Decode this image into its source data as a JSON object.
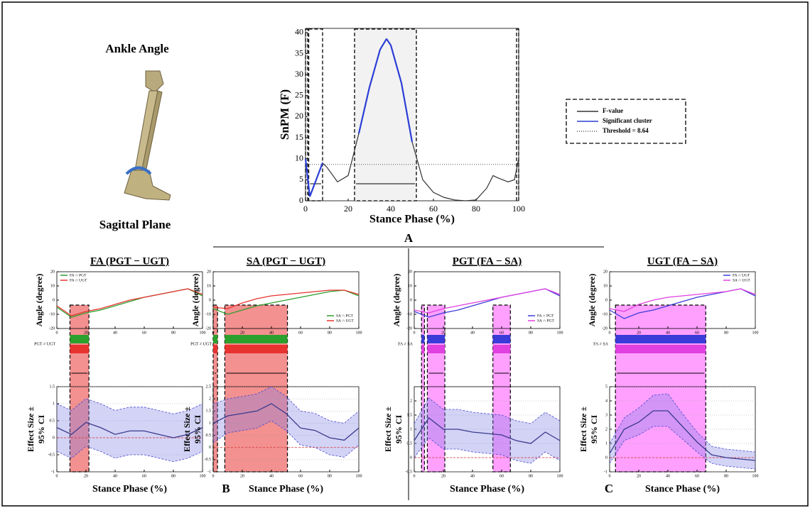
{
  "figure": {
    "left_title": "Ankle Angle",
    "left_subtitle": "Sagittal Plane",
    "panel_labels": [
      "A",
      "B",
      "C"
    ]
  },
  "chart_data": [
    {
      "type": "line",
      "ylabel": "SnPM (F)",
      "xlabel": "Stance Phase (%)",
      "xlim": [
        0,
        100
      ],
      "ylim": [
        0,
        41
      ],
      "xticks": [
        0,
        20,
        40,
        60,
        80,
        100
      ],
      "yticks": [
        0,
        5,
        10,
        15,
        20,
        25,
        30,
        35,
        40
      ],
      "x": [
        0,
        2,
        5,
        8,
        10,
        15,
        20,
        25,
        30,
        35,
        38,
        40,
        45,
        50,
        55,
        60,
        65,
        70,
        75,
        80,
        85,
        88,
        90,
        95,
        98,
        100
      ],
      "series": [
        {
          "name": "F-value",
          "color": "#333333",
          "values": [
            10,
            1,
            5,
            9,
            8,
            4.5,
            6,
            16,
            27,
            36,
            38.5,
            37,
            28,
            14,
            5,
            2,
            0.8,
            0.2,
            0,
            0.2,
            3,
            6,
            5.5,
            4.5,
            5,
            10
          ]
        }
      ],
      "threshold": 8.64,
      "threshold_label": "Threshold = 8.64",
      "cluster_label": "Significant cluster",
      "cluster_color": "#2b3ed6",
      "clusters": [
        [
          0,
          1
        ],
        [
          1.5,
          8
        ],
        [
          23,
          52
        ],
        [
          99,
          100
        ]
      ]
    },
    {
      "type": "line",
      "title": "FA (PGT − UGT)",
      "ylabel": "Angle (degree)",
      "xlim": [
        0,
        100
      ],
      "ylim": [
        -20,
        20
      ],
      "xticks": [
        0,
        20,
        40,
        60,
        80,
        100
      ],
      "yticks": [
        -20,
        -10,
        0,
        10,
        20
      ],
      "legend": "upper left",
      "x": [
        0,
        10,
        20,
        30,
        40,
        50,
        60,
        70,
        80,
        90,
        100
      ],
      "series": [
        {
          "name": "FA ∩ PGT",
          "color": "#2ca02c",
          "values": [
            -5,
            -12,
            -9,
            -7,
            -4,
            -1,
            2,
            4,
            6,
            8,
            3
          ]
        },
        {
          "name": "FA ∩ UGT",
          "color": "#e8322f",
          "values": [
            -4,
            -11,
            -8,
            -6,
            -3,
            0,
            2,
            4,
            6,
            8,
            4
          ]
        }
      ],
      "significance_label": "PGT ≠ UGT",
      "clusters": [
        [
          9,
          22
        ]
      ],
      "cluster_color": "#ef6b6b"
    },
    {
      "type": "band",
      "xlabel": "Stance Phase (%)",
      "ylabel": [
        "Effect Size ±",
        "95% CI"
      ],
      "xlim": [
        0,
        100
      ],
      "ylim": [
        -1,
        1.5
      ],
      "xticks": [
        0,
        20,
        40,
        60,
        80,
        100
      ],
      "yticks": [
        -1,
        -0.5,
        0,
        0.5,
        1,
        1.5
      ],
      "color": "#3a3a8c",
      "x": [
        0,
        10,
        20,
        30,
        40,
        50,
        60,
        70,
        80,
        90,
        100
      ],
      "values": [
        0.3,
        0.1,
        0.45,
        0.3,
        0.1,
        0.2,
        0.2,
        0.1,
        0,
        0.1,
        0.3
      ],
      "lower": [
        -0.4,
        -0.6,
        -0.25,
        -0.4,
        -0.6,
        -0.5,
        -0.5,
        -0.6,
        -0.7,
        -0.6,
        -0.4
      ],
      "upper": [
        1,
        0.8,
        1.15,
        1,
        0.8,
        0.9,
        0.9,
        0.8,
        0.7,
        0.8,
        1
      ]
    },
    {
      "type": "line",
      "title": "SA (PGT − UGT)",
      "ylabel": "Angle (degree)",
      "xlim": [
        0,
        100
      ],
      "ylim": [
        -20,
        20
      ],
      "xticks": [
        0,
        20,
        40,
        60,
        80,
        100
      ],
      "yticks": [
        -20,
        -10,
        0,
        10,
        20
      ],
      "legend": "lower right",
      "x": [
        0,
        10,
        20,
        30,
        40,
        50,
        60,
        70,
        80,
        90,
        100
      ],
      "series": [
        {
          "name": "SA ∩ PGT",
          "color": "#2ca02c",
          "values": [
            -6,
            -10,
            -7,
            -4,
            -2,
            0,
            2,
            4,
            6,
            7,
            3
          ]
        },
        {
          "name": "SA ∩ UGT",
          "color": "#e8322f",
          "values": [
            -5,
            -6,
            -2,
            1,
            3,
            4,
            5,
            6,
            7,
            7,
            4
          ]
        }
      ],
      "significance_label": "PGT ≠ UGT",
      "clusters": [
        [
          0,
          3
        ],
        [
          8,
          51
        ]
      ],
      "cluster_color": "#ef6b6b"
    },
    {
      "type": "band",
      "xlabel": "Stance Phase (%)",
      "ylabel": [
        "Effect Size ±",
        "95% CI"
      ],
      "xlim": [
        0,
        100
      ],
      "ylim": [
        -1,
        2.5
      ],
      "xticks": [
        0,
        20,
        40,
        60,
        80,
        100
      ],
      "yticks": [
        -1,
        -0.5,
        0,
        0.5,
        1,
        1.5,
        2,
        2.5
      ],
      "color": "#3a3a8c",
      "x": [
        0,
        10,
        20,
        30,
        40,
        50,
        60,
        70,
        80,
        90,
        100
      ],
      "values": [
        1,
        1.3,
        1.4,
        1.5,
        1.8,
        1.4,
        0.8,
        0.7,
        0.4,
        0.3,
        0.8
      ],
      "lower": [
        0.2,
        0.6,
        0.7,
        0.8,
        1.1,
        0.7,
        0.1,
        0,
        -0.3,
        -0.4,
        0.1
      ],
      "upper": [
        1.8,
        2,
        2.1,
        2.2,
        2.5,
        2.1,
        1.5,
        1.4,
        1.1,
        1,
        1.5
      ]
    },
    {
      "type": "line",
      "title": "PGT (FA − SA)",
      "ylabel": "Angle (degree)",
      "xlim": [
        0,
        100
      ],
      "ylim": [
        -20,
        20
      ],
      "xticks": [
        0,
        20,
        40,
        60,
        80,
        100
      ],
      "yticks": [
        -20,
        -10,
        0,
        10,
        20
      ],
      "legend": "lower right",
      "x": [
        0,
        10,
        20,
        30,
        40,
        50,
        60,
        70,
        80,
        90,
        100
      ],
      "series": [
        {
          "name": "FA ∩ PGT",
          "color": "#3b3bd9",
          "values": [
            -8,
            -12,
            -9,
            -7,
            -4,
            -1,
            2,
            4,
            6,
            8,
            3
          ]
        },
        {
          "name": "SA ∩ PGT",
          "color": "#e040e0",
          "values": [
            -7,
            -9,
            -6,
            -4,
            -2,
            0,
            2,
            4,
            6,
            8,
            4
          ]
        }
      ],
      "significance_label": "FA ≠ SA",
      "clusters": [
        [
          5,
          7
        ],
        [
          9,
          21
        ],
        [
          54,
          66
        ]
      ],
      "cluster_color": "#ff80ff"
    },
    {
      "type": "band",
      "xlabel": "Stance Phase (%)",
      "ylabel": [
        "Effect Size ±",
        "95% CI"
      ],
      "xlim": [
        0,
        100
      ],
      "ylim": [
        -0.5,
        2.5
      ],
      "xticks": [
        0,
        20,
        40,
        60,
        80,
        100
      ],
      "yticks": [
        -0.5,
        0,
        0.5,
        1,
        1.5,
        2
      ],
      "color": "#3a3a8c",
      "x": [
        0,
        10,
        20,
        30,
        40,
        50,
        60,
        70,
        80,
        90,
        100
      ],
      "values": [
        0.6,
        1.4,
        1,
        1,
        0.9,
        0.85,
        0.8,
        0.6,
        0.5,
        0.9,
        0.6
      ],
      "lower": [
        0,
        0.7,
        0.3,
        0.3,
        0.2,
        0.15,
        0.1,
        -0.1,
        -0.2,
        0.2,
        -0.1
      ],
      "upper": [
        1.2,
        2.1,
        1.7,
        1.7,
        1.6,
        1.55,
        1.5,
        1.3,
        1.2,
        1.6,
        1.3
      ]
    },
    {
      "type": "line",
      "title": "UGT (FA − SA)",
      "ylabel": "Angle (degree)",
      "xlim": [
        0,
        100
      ],
      "ylim": [
        -20,
        20
      ],
      "xticks": [
        0,
        20,
        40,
        60,
        80,
        100
      ],
      "yticks": [
        -20,
        -10,
        0,
        10,
        20
      ],
      "legend": "upper right",
      "x": [
        0,
        10,
        20,
        30,
        40,
        50,
        60,
        70,
        80,
        90,
        100
      ],
      "series": [
        {
          "name": "FA ∩ UGT",
          "color": "#3b3bd9",
          "values": [
            -7,
            -13,
            -9,
            -7,
            -4,
            -1,
            2,
            4,
            6,
            8,
            3
          ]
        },
        {
          "name": "SA ∩ UGT",
          "color": "#e040e0",
          "values": [
            -6,
            -8,
            -3,
            0,
            2,
            3,
            4,
            5,
            6,
            8,
            4
          ]
        }
      ],
      "significance_label": "FA ≠ SA",
      "clusters": [
        [
          4,
          66
        ]
      ],
      "cluster_color": "#ff80ff"
    },
    {
      "type": "band",
      "xlabel": "Stance Phase (%)",
      "ylabel": [
        "Effect Size ±",
        "95% CI"
      ],
      "xlim": [
        0,
        100
      ],
      "ylim": [
        -1,
        5
      ],
      "xticks": [
        0,
        20,
        40,
        60,
        80,
        100
      ],
      "yticks": [
        -1,
        0,
        1,
        2,
        3,
        4,
        5
      ],
      "color": "#3a3a8c",
      "x": [
        0,
        10,
        20,
        30,
        40,
        50,
        60,
        70,
        80,
        90,
        100
      ],
      "values": [
        0.3,
        2,
        2.5,
        3.3,
        3.3,
        2.2,
        1.1,
        0.2,
        0,
        -0.1,
        -0.2
      ],
      "lower": [
        -0.4,
        1.2,
        1.6,
        2.2,
        2.2,
        1.3,
        0.4,
        -0.4,
        -0.6,
        -0.7,
        -0.8
      ],
      "upper": [
        1,
        2.8,
        3.5,
        4.4,
        4.5,
        3.1,
        1.8,
        0.8,
        0.6,
        0.5,
        0.4
      ]
    }
  ]
}
